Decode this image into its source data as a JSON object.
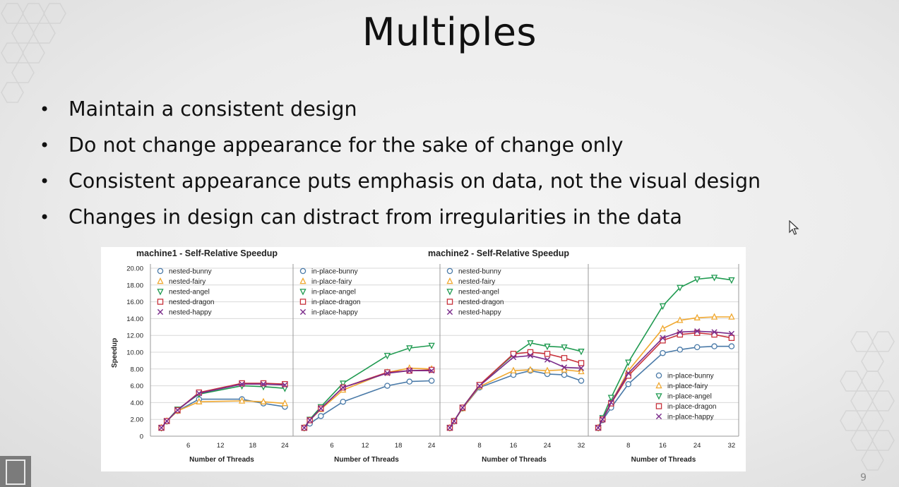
{
  "slide": {
    "title": "Multiples",
    "bullets": [
      "Maintain a consistent design",
      "Do not change appearance for the sake of change only",
      "Consistent appearance puts emphasis on data, not the visual design",
      "Changes in design can distract from irregularities in the data"
    ],
    "page_number": "9"
  },
  "colors": {
    "bunny": "#4a7aa8",
    "fairy": "#f0a830",
    "angel": "#1f9a50",
    "dragon": "#c8323c",
    "happy": "#7a2a8a"
  },
  "chart_data": [
    {
      "type": "line",
      "title": "machine1 - Self-Relative Speedup",
      "ylabel": "Speedup",
      "yticks": [
        "0",
        "2.00",
        "4.00",
        "6.00",
        "8.00",
        "10.00",
        "12.00",
        "14.00",
        "16.00",
        "18.00",
        "20.00"
      ],
      "ylim": [
        0,
        20
      ],
      "panels": [
        {
          "xlabel": "Number of Threads",
          "xticks": [
            "6",
            "12",
            "18",
            "24"
          ],
          "xlim": [
            0,
            25
          ],
          "legend_position": "top-left",
          "series": [
            {
              "name": "nested-bunny",
              "key": "bunny",
              "marker": "circle",
              "x": [
                1,
                2,
                4,
                8,
                16,
                20,
                24
              ],
              "y": [
                1,
                1.8,
                3.0,
                4.4,
                4.4,
                3.9,
                3.5
              ]
            },
            {
              "name": "nested-fairy",
              "key": "fairy",
              "marker": "triangle-up",
              "x": [
                1,
                2,
                4,
                8,
                16,
                20,
                24
              ],
              "y": [
                1,
                1.8,
                3.0,
                4.1,
                4.2,
                4.1,
                3.9
              ]
            },
            {
              "name": "nested-angel",
              "key": "angel",
              "marker": "triangle-down",
              "x": [
                1,
                2,
                4,
                8,
                16,
                20,
                24
              ],
              "y": [
                1,
                1.8,
                3.2,
                5.0,
                6.0,
                5.9,
                5.7
              ]
            },
            {
              "name": "nested-dragon",
              "key": "dragon",
              "marker": "square",
              "x": [
                1,
                2,
                4,
                8,
                16,
                20,
                24
              ],
              "y": [
                1,
                1.8,
                3.1,
                5.2,
                6.3,
                6.3,
                6.2
              ]
            },
            {
              "name": "nested-happy",
              "key": "happy",
              "marker": "x",
              "x": [
                1,
                2,
                4,
                8,
                16,
                20,
                24
              ],
              "y": [
                1,
                1.8,
                3.1,
                5.1,
                6.2,
                6.2,
                6.1
              ]
            }
          ]
        },
        {
          "xlabel": "Number of Threads",
          "xticks": [
            "6",
            "12",
            "18",
            "24"
          ],
          "xlim": [
            0,
            25
          ],
          "legend_position": "top-left",
          "series": [
            {
              "name": "in-place-bunny",
              "key": "bunny",
              "marker": "circle",
              "x": [
                1,
                2,
                4,
                8,
                16,
                20,
                24
              ],
              "y": [
                1,
                1.5,
                2.4,
                4.1,
                6.0,
                6.5,
                6.6
              ]
            },
            {
              "name": "in-place-fairy",
              "key": "fairy",
              "marker": "triangle-up",
              "x": [
                1,
                2,
                4,
                8,
                16,
                20,
                24
              ],
              "y": [
                1,
                1.9,
                3.2,
                5.5,
                7.6,
                8.1,
                8.0
              ]
            },
            {
              "name": "in-place-angel",
              "key": "angel",
              "marker": "triangle-down",
              "x": [
                1,
                2,
                4,
                8,
                16,
                20,
                24
              ],
              "y": [
                1,
                2.0,
                3.5,
                6.3,
                9.6,
                10.5,
                10.8
              ]
            },
            {
              "name": "in-place-dragon",
              "key": "dragon",
              "marker": "square",
              "x": [
                1,
                2,
                4,
                8,
                16,
                20,
                24
              ],
              "y": [
                1,
                1.9,
                3.3,
                5.8,
                7.6,
                7.8,
                7.9
              ]
            },
            {
              "name": "in-place-happy",
              "key": "happy",
              "marker": "x",
              "x": [
                1,
                2,
                4,
                8,
                16,
                20,
                24
              ],
              "y": [
                1,
                1.9,
                3.3,
                5.8,
                7.5,
                7.8,
                7.8
              ]
            }
          ]
        }
      ]
    },
    {
      "type": "line",
      "title": "machine2 - Self-Relative Speedup",
      "ylabel": "Speedup",
      "ylim": [
        0,
        20
      ],
      "panels": [
        {
          "xlabel": "Number of Threads",
          "xticks": [
            "8",
            "16",
            "24",
            "32"
          ],
          "xlim": [
            0,
            33
          ],
          "legend_position": "top-left",
          "series": [
            {
              "name": "nested-bunny",
              "key": "bunny",
              "marker": "circle",
              "x": [
                1,
                2,
                4,
                8,
                16,
                20,
                24,
                28,
                32
              ],
              "y": [
                1,
                1.8,
                3.3,
                5.8,
                7.3,
                7.8,
                7.4,
                7.3,
                6.6
              ]
            },
            {
              "name": "nested-fairy",
              "key": "fairy",
              "marker": "triangle-up",
              "x": [
                1,
                2,
                4,
                8,
                16,
                20,
                24,
                28,
                32
              ],
              "y": [
                1,
                1.8,
                3.3,
                5.9,
                7.8,
                7.9,
                7.8,
                7.9,
                7.7
              ]
            },
            {
              "name": "nested-angel",
              "key": "angel",
              "marker": "triangle-down",
              "x": [
                1,
                2,
                4,
                8,
                16,
                20,
                24,
                28,
                32
              ],
              "y": [
                1,
                1.8,
                3.4,
                6.1,
                9.7,
                11.1,
                10.7,
                10.6,
                10.1
              ]
            },
            {
              "name": "nested-dragon",
              "key": "dragon",
              "marker": "square",
              "x": [
                1,
                2,
                4,
                8,
                16,
                20,
                24,
                28,
                32
              ],
              "y": [
                1,
                1.8,
                3.4,
                6.1,
                9.8,
                10.0,
                9.8,
                9.3,
                8.7
              ]
            },
            {
              "name": "nested-happy",
              "key": "happy",
              "marker": "x",
              "x": [
                1,
                2,
                4,
                8,
                16,
                20,
                24,
                28,
                32
              ],
              "y": [
                1,
                1.8,
                3.4,
                6.0,
                9.4,
                9.6,
                9.1,
                8.2,
                8.1
              ]
            }
          ]
        },
        {
          "xlabel": "Number of Threads",
          "xticks": [
            "8",
            "16",
            "24",
            "32"
          ],
          "xlim": [
            0,
            33
          ],
          "legend_position": "bottom-right",
          "series": [
            {
              "name": "in-place-bunny",
              "key": "bunny",
              "marker": "circle",
              "x": [
                1,
                2,
                4,
                8,
                16,
                20,
                24,
                28,
                32
              ],
              "y": [
                1,
                1.9,
                3.4,
                6.2,
                9.9,
                10.3,
                10.6,
                10.7,
                10.7
              ]
            },
            {
              "name": "in-place-fairy",
              "key": "fairy",
              "marker": "triangle-up",
              "x": [
                1,
                2,
                4,
                8,
                16,
                20,
                24,
                28,
                32
              ],
              "y": [
                1,
                2.1,
                4.0,
                7.8,
                12.8,
                13.8,
                14.1,
                14.2,
                14.2
              ]
            },
            {
              "name": "in-place-angel",
              "key": "angel",
              "marker": "triangle-down",
              "x": [
                1,
                2,
                4,
                8,
                16,
                20,
                24,
                28,
                32
              ],
              "y": [
                1,
                2.2,
                4.6,
                8.8,
                15.5,
                17.7,
                18.7,
                18.9,
                18.6
              ]
            },
            {
              "name": "in-place-dragon",
              "key": "dragon",
              "marker": "square",
              "x": [
                1,
                2,
                4,
                8,
                16,
                20,
                24,
                28,
                32
              ],
              "y": [
                1,
                2.0,
                3.9,
                7.2,
                11.4,
                12.1,
                12.3,
                12.1,
                11.7
              ]
            },
            {
              "name": "in-place-happy",
              "key": "happy",
              "marker": "x",
              "x": [
                1,
                2,
                4,
                8,
                16,
                20,
                24,
                28,
                32
              ],
              "y": [
                1,
                2.0,
                4.0,
                7.5,
                11.7,
                12.4,
                12.5,
                12.4,
                12.2
              ]
            }
          ]
        }
      ]
    }
  ]
}
